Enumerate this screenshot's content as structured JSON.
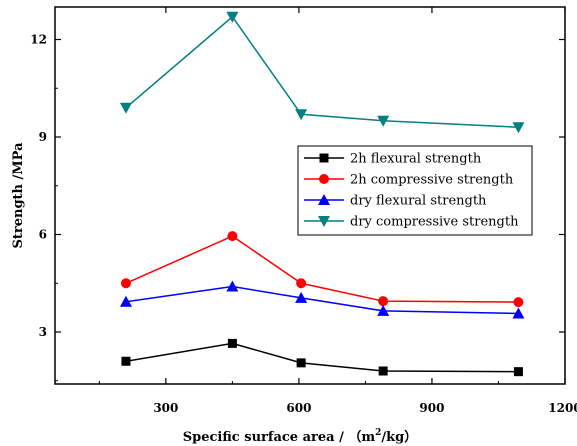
{
  "chart_data": {
    "type": "line",
    "title": "",
    "xlabel": "Specific surface area / (m²/kg)",
    "xlabel_parts": {
      "prefix": "Specific surface area / （m",
      "sup": "2",
      "suffix": "/kg）"
    },
    "ylabel": "Strength /MPa",
    "xlim": [
      50,
      1200
    ],
    "ylim": [
      1.4,
      13.0
    ],
    "xticks": [
      300,
      600,
      900,
      1200
    ],
    "yticks": [
      3,
      6,
      9,
      12
    ],
    "grid": false,
    "legend_position": "middle-right",
    "x": [
      210,
      450,
      605,
      790,
      1095
    ],
    "series": [
      {
        "name": "2h flexural strength",
        "color": "#000000",
        "marker": "square",
        "values": [
          2.1,
          2.65,
          2.05,
          1.8,
          1.78
        ]
      },
      {
        "name": "2h compressive strength",
        "color": "#ff0000",
        "marker": "circle",
        "values": [
          4.5,
          5.95,
          4.5,
          3.95,
          3.92
        ]
      },
      {
        "name": "dry flexural strength",
        "color": "#0000ff",
        "marker": "triangle-up",
        "values": [
          3.93,
          4.4,
          4.05,
          3.65,
          3.57
        ]
      },
      {
        "name": "dry compressive strength",
        "color": "#008080",
        "marker": "triangle-down",
        "values": [
          9.9,
          12.7,
          9.7,
          9.5,
          9.3
        ]
      }
    ]
  }
}
